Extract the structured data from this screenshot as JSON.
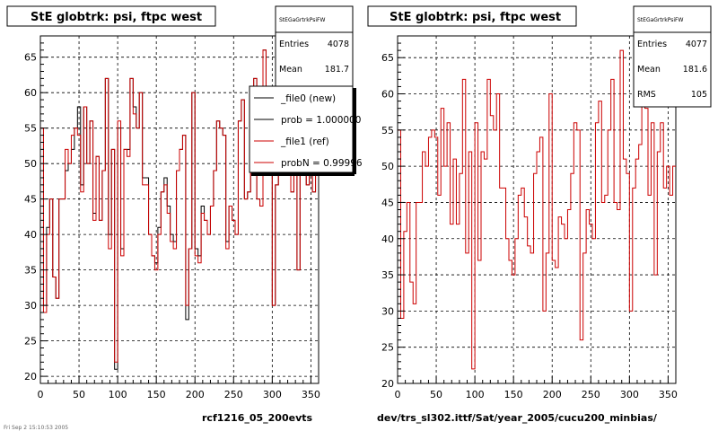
{
  "panels": [
    {
      "chart_data": {
        "type": "step",
        "title": "StE globtrk: psi, ftpc west",
        "xlim": [
          0,
          360
        ],
        "ylim": [
          19,
          68
        ],
        "x_ticks": [
          0,
          50,
          100,
          150,
          200,
          250,
          300,
          350
        ],
        "y_ticks": [
          20,
          25,
          30,
          35,
          40,
          45,
          50,
          55,
          60,
          65
        ],
        "grid": true,
        "bin_width": 4,
        "series": [
          {
            "name": "_file0 (new)",
            "color": "#000000",
            "values": [
              55,
              30,
              41,
              45,
              34,
              31,
              45,
              45,
              49,
              50,
              52,
              55,
              58,
              47,
              58,
              50,
              56,
              43,
              51,
              42,
              49,
              62,
              40,
              52,
              21,
              55,
              38,
              52,
              52,
              62,
              58,
              55,
              60,
              48,
              48,
              40,
              37,
              36,
              41,
              46,
              48,
              44,
              40,
              39,
              49,
              52,
              54,
              28,
              38,
              60,
              38,
              37,
              44,
              42,
              40,
              44,
              49,
              56,
              55,
              54,
              39,
              44,
              42,
              40,
              56,
              59,
              45,
              46,
              55,
              62,
              45,
              44,
              66,
              51,
              49,
              30,
              47,
              51,
              53,
              62,
              58,
              46,
              56,
              35,
              52,
              56,
              47,
              50,
              46,
              50
            ]
          },
          {
            "name": "_file1 (ref)",
            "color": "#cc0000",
            "values": [
              55,
              29,
              40,
              45,
              34,
              31,
              45,
              45,
              52,
              50,
              54,
              55,
              54,
              46,
              58,
              50,
              56,
              42,
              51,
              42,
              49,
              62,
              38,
              52,
              22,
              56,
              37,
              52,
              51,
              62,
              57,
              55,
              60,
              47,
              47,
              40,
              37,
              35,
              40,
              46,
              47,
              43,
              39,
              38,
              49,
              52,
              54,
              30,
              38,
              60,
              37,
              36,
              43,
              42,
              40,
              44,
              49,
              56,
              55,
              54,
              38,
              44,
              42,
              40,
              56,
              59,
              45,
              46,
              55,
              62,
              45,
              44,
              66,
              51,
              49,
              30,
              47,
              51,
              53,
              62,
              58,
              46,
              56,
              35,
              52,
              56,
              47,
              50,
              46,
              50
            ]
          }
        ]
      },
      "stats": {
        "name": "StEGaGrtrkPsiFW",
        "entries_label": "Entries",
        "entries": "4078",
        "mean_label": "Mean",
        "mean": "181.7"
      },
      "legend": [
        "_file0 (new)",
        "prob = 1.000000",
        "_file1 (ref)",
        "probN = 0.99996"
      ],
      "caption": "rcf1216_05_200evts"
    },
    {
      "chart_data": {
        "type": "step",
        "title": "StE globtrk: psi, ftpc west",
        "xlim": [
          0,
          360
        ],
        "ylim": [
          20,
          68
        ],
        "x_ticks": [
          0,
          50,
          100,
          150,
          200,
          250,
          300,
          350
        ],
        "y_ticks": [
          20,
          25,
          30,
          35,
          40,
          45,
          50,
          55,
          60,
          65
        ],
        "grid": true,
        "bin_width": 4,
        "series": [
          {
            "name": "",
            "color": "#cc0000",
            "values": [
              55,
              29,
              41,
              45,
              34,
              31,
              45,
              45,
              52,
              50,
              54,
              55,
              54,
              46,
              58,
              50,
              56,
              42,
              51,
              42,
              49,
              62,
              38,
              52,
              22,
              56,
              37,
              52,
              51,
              62,
              57,
              55,
              60,
              47,
              47,
              40,
              37,
              35,
              40,
              46,
              47,
              43,
              39,
              38,
              49,
              52,
              54,
              30,
              38,
              60,
              37,
              36,
              43,
              42,
              40,
              44,
              49,
              56,
              55,
              26,
              38,
              44,
              42,
              40,
              56,
              59,
              45,
              46,
              55,
              62,
              45,
              44,
              66,
              51,
              49,
              30,
              47,
              51,
              53,
              62,
              58,
              46,
              56,
              35,
              52,
              56,
              47,
              50,
              46,
              50
            ]
          }
        ]
      },
      "stats": {
        "name": "StEGaGrtrkPsiFW",
        "entries_label": "Entries",
        "entries": "4077",
        "mean_label": "Mean",
        "mean": "181.6",
        "rms_label": "RMS",
        "rms": "105"
      },
      "caption": "dev/trs_sl302.ittf/Sat/year_2005/cucu200_minbias/"
    }
  ],
  "footer": "Fri Sep 2 15:10:53 2005"
}
